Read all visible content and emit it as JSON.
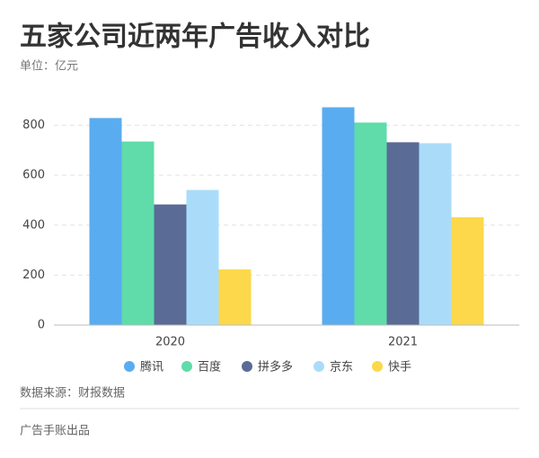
{
  "chart_data": {
    "type": "bar",
    "title": "五家公司近两年广告收入对比",
    "subtitle": "单位：亿元",
    "categories": [
      "2020",
      "2021"
    ],
    "series": [
      {
        "name": "腾讯",
        "color": "#5aacf0",
        "values": [
          829,
          872
        ]
      },
      {
        "name": "百度",
        "color": "#5fdcaa",
        "values": [
          735,
          811
        ]
      },
      {
        "name": "拼多多",
        "color": "#5a6b96",
        "values": [
          483,
          732
        ]
      },
      {
        "name": "京东",
        "color": "#aadcfa",
        "values": [
          541,
          728
        ]
      },
      {
        "name": "快手",
        "color": "#fcd84a",
        "values": [
          223,
          432
        ]
      }
    ],
    "ylim": [
      0,
      960
    ],
    "yticks": [
      0,
      200,
      400,
      600,
      800
    ],
    "grid": true,
    "source": "数据来源：财报数据",
    "credit": "广告手账出品"
  }
}
